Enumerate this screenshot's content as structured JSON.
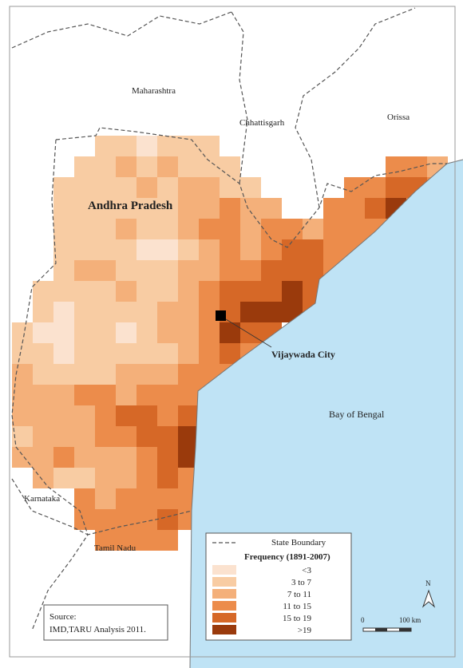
{
  "map": {
    "labels": {
      "maharashtra": "Maharashtra",
      "chhattisgarh": "Chhattisgarh",
      "orissa": "Orissa",
      "andhra": "Andhra Pradesh",
      "city": "Vijaywada City",
      "bay": "Bay of Bengal",
      "karnataka": "Karnataka",
      "tamil": "Tamil Nadu"
    },
    "legend": {
      "boundary": "State Boundary",
      "title": "Frequency (1891-2007)",
      "classes": [
        {
          "label": "<3",
          "color": "#fbe2cf"
        },
        {
          "label": "3 to 7",
          "color": "#f8cca3"
        },
        {
          "label": "7 to 11",
          "color": "#f4b07a"
        },
        {
          "label": "11 to 15",
          "color": "#ec8c4b"
        },
        {
          "label": "15 to 19",
          "color": "#d66827"
        },
        {
          "label": ">19",
          "color": "#9a3a0c"
        }
      ]
    },
    "source": {
      "line1": "Source:",
      "line2": "IMD,TARU Analysis 2011."
    },
    "scale": {
      "start": "0",
      "end": "100 km"
    },
    "north": "N",
    "cells": [
      [
        null,
        null,
        null,
        null,
        1,
        1,
        0,
        1,
        1,
        1,
        null,
        null,
        null,
        null,
        null,
        null,
        null,
        null,
        null,
        null,
        null
      ],
      [
        null,
        null,
        null,
        1,
        1,
        2,
        1,
        2,
        1,
        1,
        1,
        null,
        null,
        null,
        null,
        null,
        null,
        null,
        3,
        3,
        2
      ],
      [
        null,
        null,
        1,
        1,
        1,
        1,
        2,
        1,
        2,
        2,
        1,
        1,
        null,
        null,
        null,
        null,
        3,
        3,
        4,
        4,
        3
      ],
      [
        null,
        null,
        1,
        1,
        1,
        1,
        1,
        1,
        2,
        2,
        3,
        2,
        2,
        null,
        null,
        3,
        3,
        4,
        5,
        3,
        null
      ],
      [
        null,
        null,
        1,
        1,
        1,
        2,
        1,
        1,
        2,
        3,
        3,
        2,
        3,
        3,
        2,
        3,
        3,
        3,
        3,
        null,
        null
      ],
      [
        null,
        null,
        1,
        1,
        1,
        1,
        0,
        0,
        1,
        2,
        3,
        2,
        3,
        4,
        4,
        3,
        3,
        2,
        null,
        null,
        null
      ],
      [
        null,
        null,
        1,
        2,
        2,
        1,
        1,
        1,
        2,
        2,
        3,
        3,
        4,
        4,
        4,
        3,
        2,
        null,
        null,
        null,
        null
      ],
      [
        null,
        1,
        1,
        1,
        1,
        2,
        1,
        1,
        2,
        3,
        4,
        4,
        4,
        5,
        4,
        3,
        null,
        null,
        null,
        null,
        null
      ],
      [
        null,
        1,
        0,
        1,
        1,
        1,
        1,
        2,
        2,
        3,
        4,
        5,
        5,
        5,
        4,
        null,
        null,
        null,
        null,
        null,
        null
      ],
      [
        1,
        0,
        0,
        1,
        1,
        0,
        1,
        2,
        2,
        3,
        5,
        4,
        4,
        null,
        null,
        null,
        null,
        null,
        null,
        null,
        null
      ],
      [
        1,
        1,
        0,
        1,
        1,
        1,
        1,
        1,
        2,
        3,
        4,
        3,
        null,
        null,
        null,
        null,
        null,
        null,
        null,
        null,
        null
      ],
      [
        2,
        1,
        1,
        1,
        1,
        2,
        2,
        2,
        3,
        3,
        3,
        null,
        null,
        null,
        null,
        null,
        null,
        null,
        null,
        null,
        null
      ],
      [
        2,
        2,
        2,
        3,
        3,
        2,
        3,
        3,
        3,
        3,
        null,
        null,
        null,
        null,
        null,
        null,
        null,
        null,
        null,
        null,
        null
      ],
      [
        2,
        2,
        2,
        2,
        3,
        4,
        4,
        3,
        4,
        null,
        null,
        null,
        null,
        null,
        null,
        null,
        null,
        null,
        null,
        null,
        null
      ],
      [
        1,
        2,
        2,
        2,
        3,
        3,
        4,
        4,
        5,
        null,
        null,
        null,
        null,
        null,
        null,
        null,
        null,
        null,
        null,
        null,
        null
      ],
      [
        2,
        2,
        3,
        2,
        2,
        2,
        3,
        4,
        5,
        null,
        null,
        null,
        null,
        null,
        null,
        null,
        null,
        null,
        null,
        null,
        null
      ],
      [
        null,
        2,
        1,
        1,
        2,
        2,
        3,
        4,
        3,
        null,
        null,
        null,
        null,
        null,
        null,
        null,
        null,
        null,
        null,
        null,
        null
      ],
      [
        null,
        null,
        null,
        3,
        2,
        3,
        3,
        3,
        3,
        null,
        null,
        null,
        null,
        null,
        null,
        null,
        null,
        null,
        null,
        null,
        null
      ],
      [
        null,
        null,
        null,
        3,
        3,
        3,
        3,
        4,
        3,
        null,
        null,
        null,
        null,
        null,
        null,
        null,
        null,
        null,
        null,
        null,
        null
      ],
      [
        null,
        null,
        null,
        null,
        3,
        3,
        3,
        3,
        null,
        null,
        null,
        null,
        null,
        null,
        null,
        null,
        null,
        null,
        null,
        null,
        null
      ]
    ]
  }
}
